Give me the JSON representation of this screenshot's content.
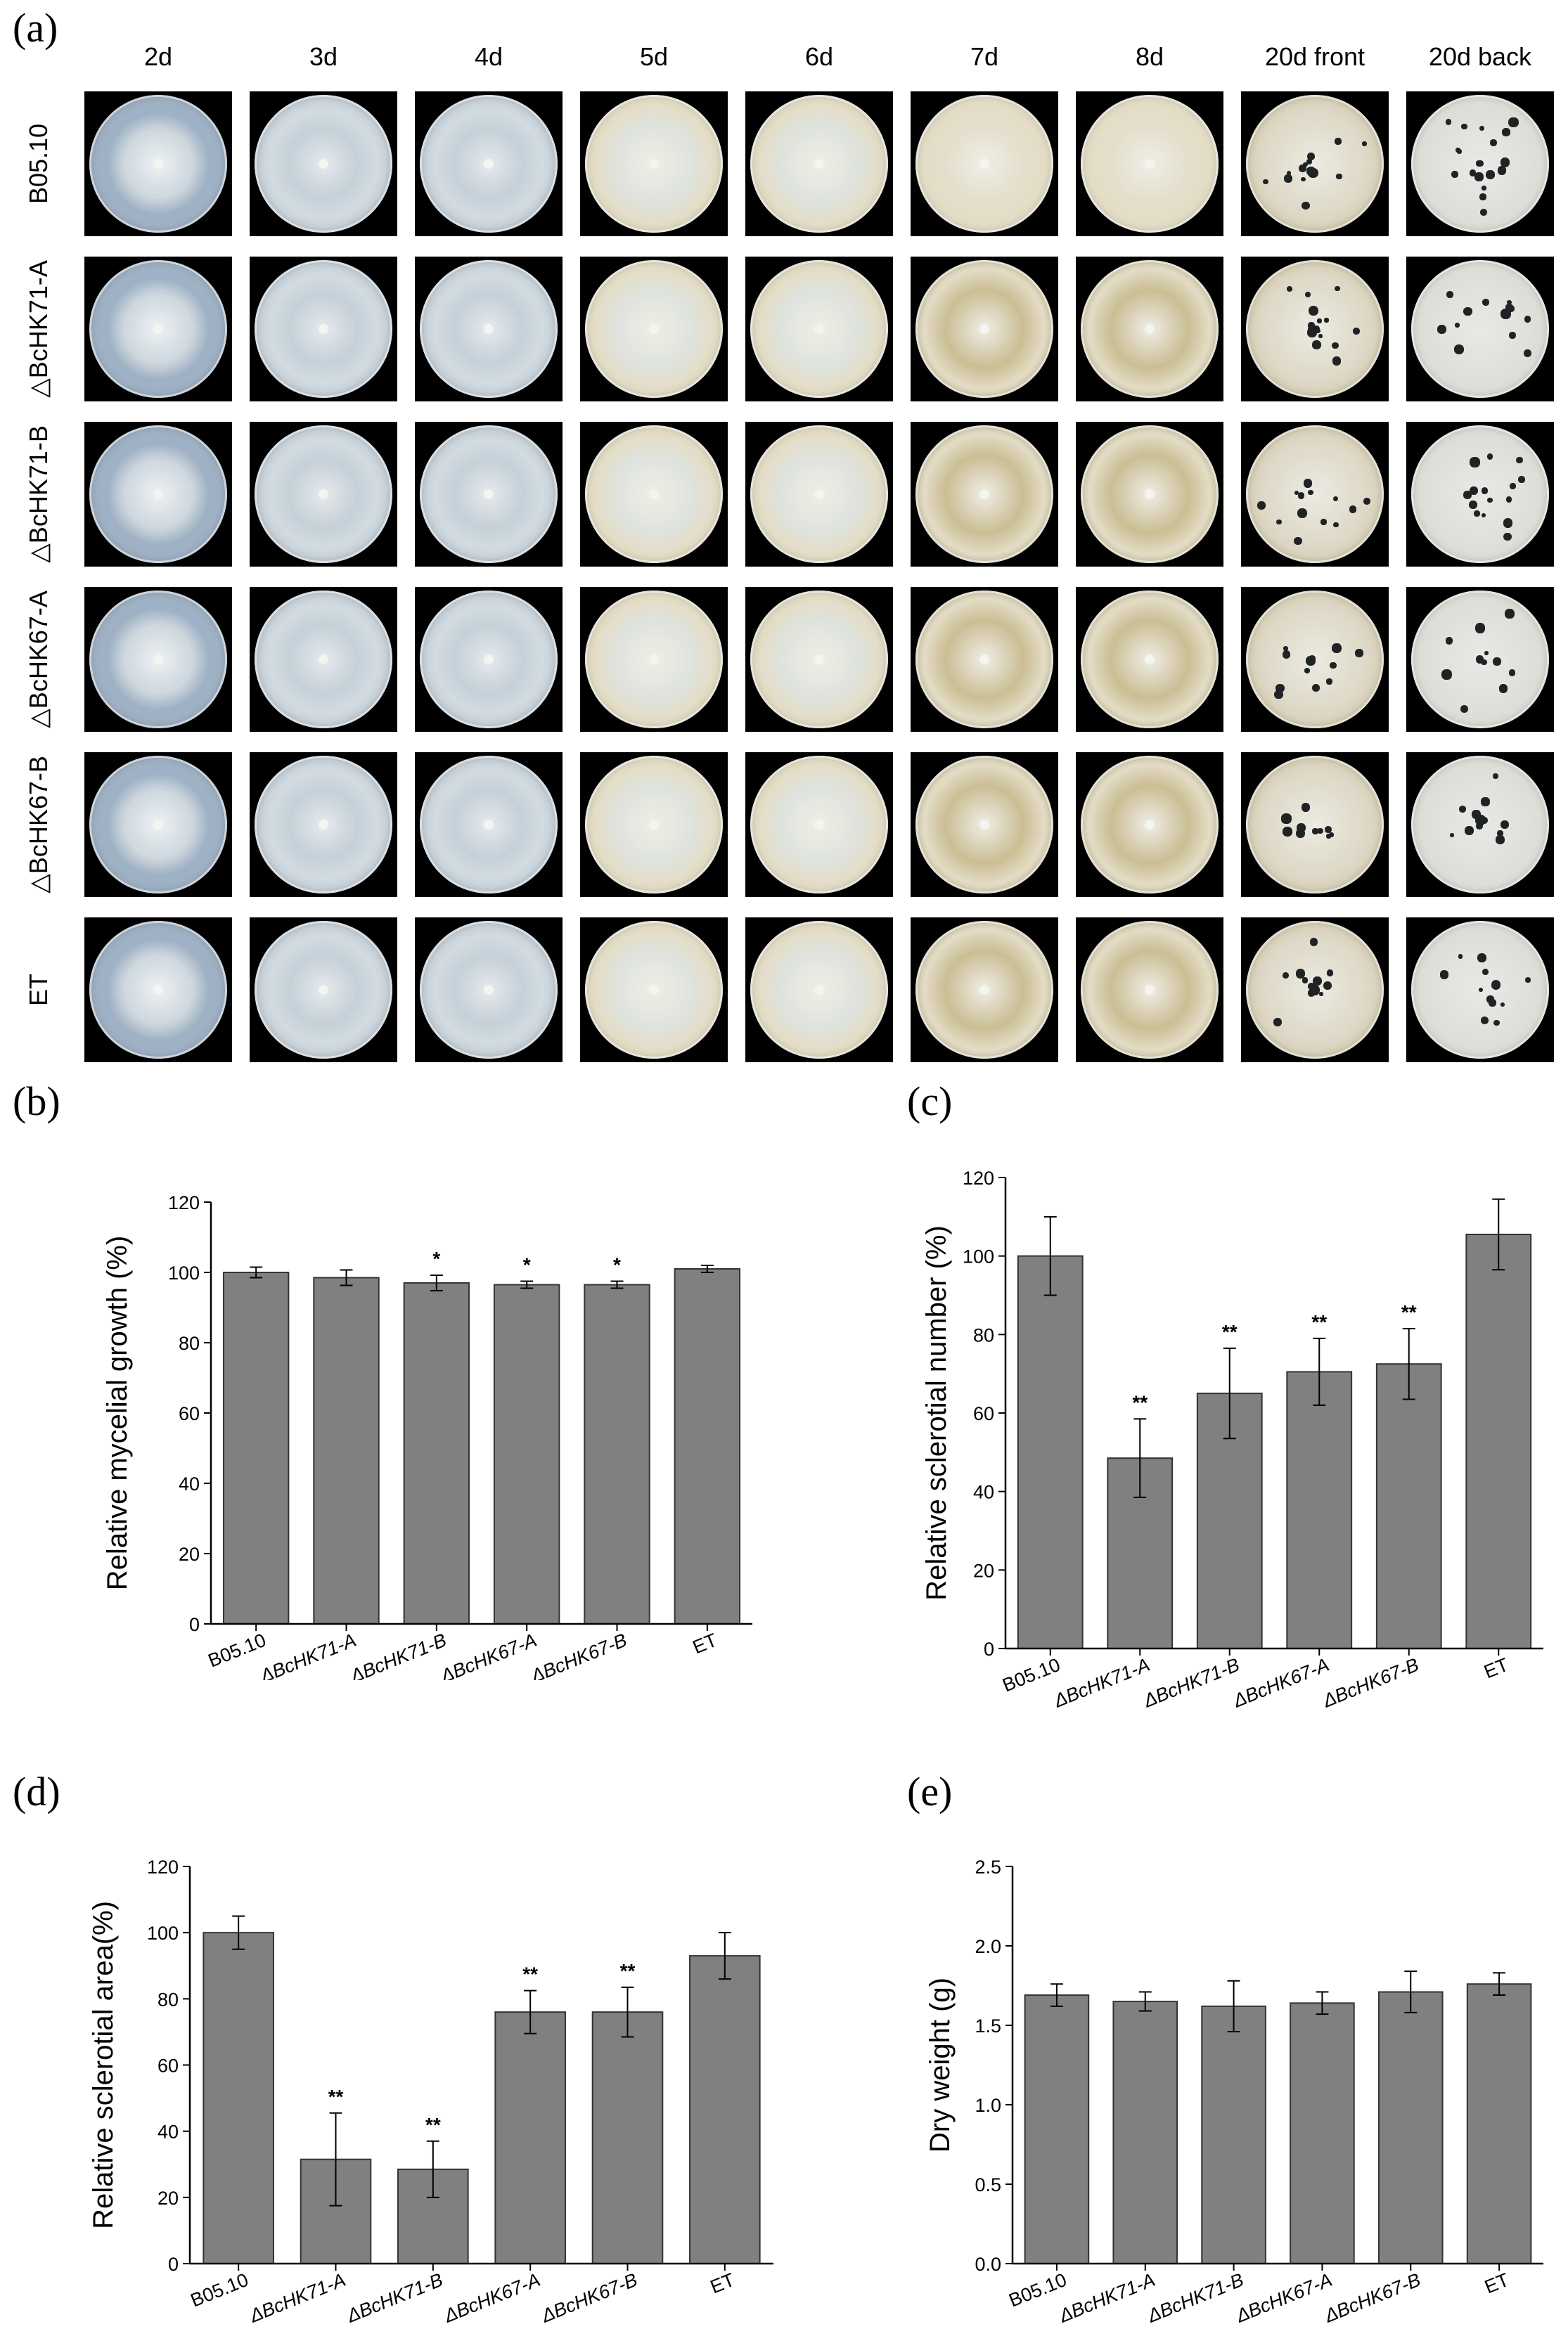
{
  "panels": {
    "a": "(a)",
    "b": "(b)",
    "c": "(c)",
    "d": "(d)",
    "e": "(e)"
  },
  "plate_grid": {
    "columns": [
      "2d",
      "3d",
      "4d",
      "5d",
      "6d",
      "7d",
      "8d",
      "20d front",
      "20d back"
    ],
    "rows": [
      "B05.10",
      "△BcHK71-A",
      "△BcHK71-B",
      "△BcHK67-A",
      "△BcHK67-B",
      "ET"
    ],
    "colors": {
      "agar_blue": "#9fb1c4",
      "mycelium_white": "#dde3e6",
      "mycelium_cream": "#e3ddc6",
      "mycelium_tan": "#cbbd94",
      "sclerotia": "#1f2324",
      "plate_background": "#000000"
    }
  },
  "chart_data": [
    {
      "type": "bar",
      "panel": "(b)",
      "categories": [
        "B05.10",
        "ΔBcHK71-A",
        "ΔBcHK71-B",
        "ΔBcHK67-A",
        "ΔBcHK67-B",
        "ET"
      ],
      "values": [
        100,
        98.5,
        97,
        96.5,
        96.5,
        101
      ],
      "errors": [
        1.5,
        2.2,
        2.2,
        1.0,
        1.0,
        1.0
      ],
      "significance": [
        "",
        "",
        "*",
        "*",
        "*",
        ""
      ],
      "ylabel": "Relative mycelial growth (%)",
      "xlabel": "",
      "ylim": [
        0,
        120
      ],
      "yticks": [
        0,
        20,
        40,
        60,
        80,
        100,
        120
      ],
      "bar_color": "#808080"
    },
    {
      "type": "bar",
      "panel": "(c)",
      "categories": [
        "B05.10",
        "ΔBcHK71-A",
        "ΔBcHK71-B",
        "ΔBcHK67-A",
        "ΔBcHK67-B",
        "ET"
      ],
      "values": [
        100,
        48.5,
        65,
        70.5,
        72.5,
        105.5
      ],
      "errors": [
        10,
        10,
        11.5,
        8.5,
        9,
        9
      ],
      "significance": [
        "",
        "**",
        "**",
        "**",
        "**",
        ""
      ],
      "ylabel": "Relative sclerotial number (%)",
      "xlabel": "",
      "ylim": [
        0,
        120
      ],
      "yticks": [
        0,
        20,
        40,
        60,
        80,
        100,
        120
      ],
      "bar_color": "#808080"
    },
    {
      "type": "bar",
      "panel": "(d)",
      "categories": [
        "B05.10",
        "ΔBcHK71-A",
        "ΔBcHK71-B",
        "ΔBcHK67-A",
        "ΔBcHK67-B",
        "ET"
      ],
      "values": [
        100,
        31.5,
        28.5,
        76,
        76,
        93
      ],
      "errors": [
        5,
        14,
        8.5,
        6.5,
        7.5,
        7
      ],
      "significance": [
        "",
        "**",
        "**",
        "**",
        "**",
        ""
      ],
      "ylabel": "Relative sclerotial area(%)",
      "xlabel": "",
      "ylim": [
        0,
        120
      ],
      "yticks": [
        0,
        20,
        40,
        60,
        80,
        100,
        120
      ],
      "bar_color": "#808080"
    },
    {
      "type": "bar",
      "panel": "(e)",
      "categories": [
        "B05.10",
        "ΔBcHK71-A",
        "ΔBcHK71-B",
        "ΔBcHK67-A",
        "ΔBcHK67-B",
        "ET"
      ],
      "values": [
        1.69,
        1.65,
        1.62,
        1.64,
        1.71,
        1.76
      ],
      "errors": [
        0.07,
        0.06,
        0.16,
        0.07,
        0.13,
        0.07
      ],
      "significance": [
        "",
        "",
        "",
        "",
        "",
        ""
      ],
      "ylabel": "Dry weight (g)",
      "xlabel": "",
      "ylim": [
        0,
        2.5
      ],
      "yticks": [
        "0.0",
        "0.5",
        "1.0",
        "1.5",
        "2.0",
        "2.5"
      ],
      "bar_color": "#808080"
    }
  ]
}
